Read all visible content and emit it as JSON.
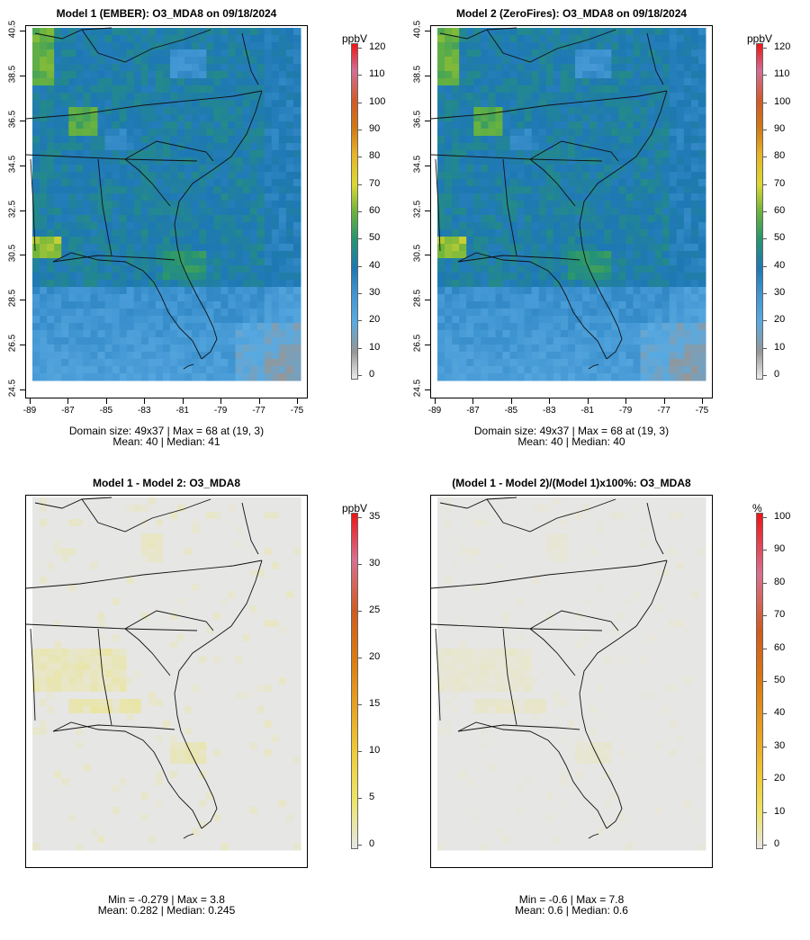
{
  "panels": [
    {
      "title": "Model 1 (EMBER): O3_MDA8 on 09/18/2024",
      "unit": "ppbV",
      "colorbar": [
        "0",
        "10",
        "20",
        "30",
        "40",
        "50",
        "60",
        "70",
        "80",
        "90",
        "100",
        "110",
        "120"
      ],
      "stat_line1": "Domain size: 49x37 | Max = 68 at (19, 3)",
      "stat_line2": "Mean: 40 |  Median: 41",
      "mean_value": 40,
      "max_value": 68
    },
    {
      "title": "Model 2 (ZeroFires): O3_MDA8 on 09/18/2024",
      "unit": "ppbV",
      "colorbar": [
        "0",
        "10",
        "20",
        "30",
        "40",
        "50",
        "60",
        "70",
        "80",
        "90",
        "100",
        "110",
        "120"
      ],
      "stat_line1": "Domain size: 49x37 | Max = 68 at (19, 3)",
      "stat_line2": "Mean: 40 |  Median: 40",
      "mean_value": 40,
      "max_value": 68
    },
    {
      "title": "Model 1 - Model 2: O3_MDA8",
      "unit": "ppbV",
      "colorbar": [
        "0",
        "5",
        "10",
        "15",
        "20",
        "25",
        "30",
        "35"
      ],
      "stat_line1": "Min = -0.279 | Max = 3.8",
      "stat_line2": "Mean: 0.282 |  Median: 0.245",
      "mean_value": 0.282,
      "max_value": 3.8
    },
    {
      "title": "(Model 1 - Model 2)/(Model 1)x100%: O3_MDA8",
      "unit": "%",
      "colorbar": [
        "0",
        "10",
        "20",
        "30",
        "40",
        "50",
        "60",
        "70",
        "80",
        "90",
        "100"
      ],
      "stat_line1": "Min = -0.6 | Max = 7.8",
      "stat_line2": "Mean: 0.6 |  Median: 0.6",
      "mean_value": 0.6,
      "max_value": 7.8
    }
  ],
  "lat_ticks": [
    "24.5",
    "26.5",
    "28.5",
    "30.5",
    "32.5",
    "34.5",
    "36.5",
    "38.5",
    "40.5"
  ],
  "lon_ticks": [
    "-89",
    "-87",
    "-85",
    "-83",
    "-81",
    "-79",
    "-77",
    "-75"
  ],
  "colors": {
    "ozone_low": "#5aaee6",
    "ozone_mid": "#1f78b4",
    "ozone_high": "#2e9a5a",
    "ozone_peak": "#d6d627",
    "diff_background": "#e6e6e6",
    "diff_highlight": "#f2ec9a"
  }
}
